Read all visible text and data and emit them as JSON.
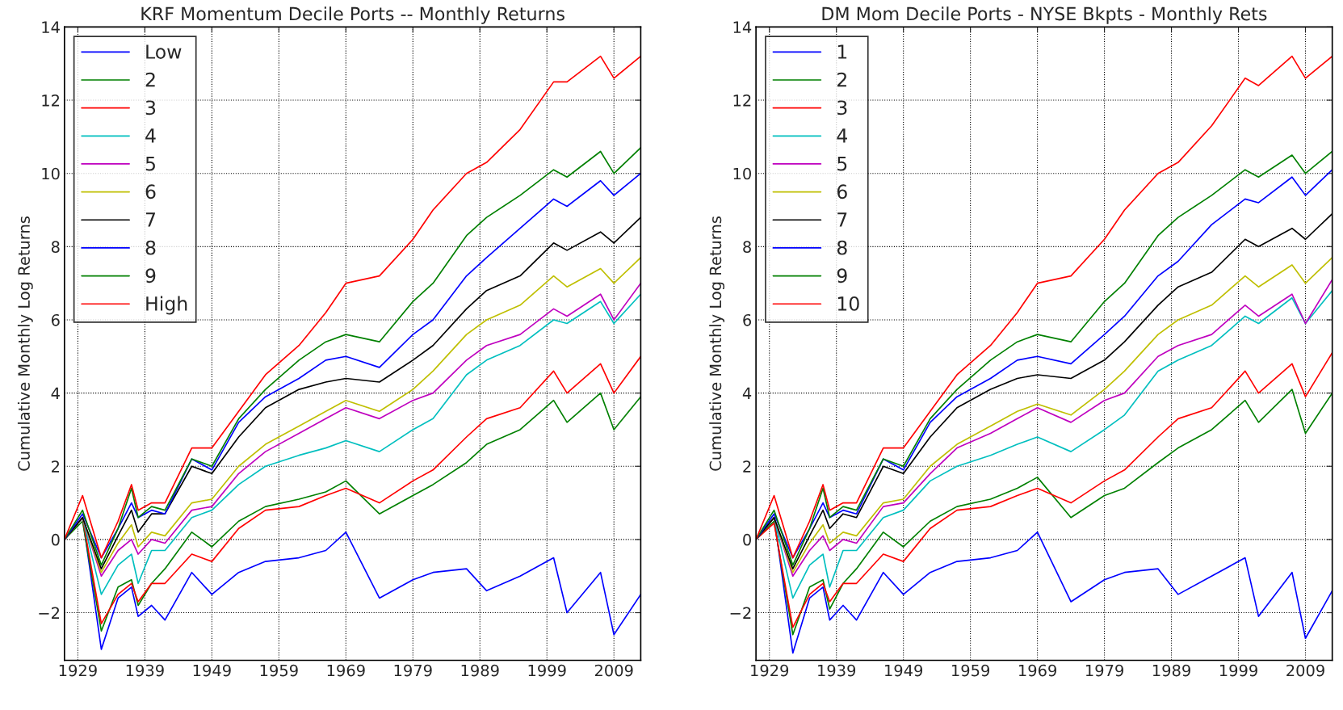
{
  "chart_data": [
    {
      "type": "line",
      "title": "KRF Momentum Decile Ports -- Monthly Returns",
      "ylabel": "Cumulative Monthly Log Returns",
      "x": [
        1927,
        1929.7,
        1932.5,
        1935,
        1937,
        1938,
        1940,
        1942,
        1946,
        1949,
        1953,
        1957,
        1962,
        1966,
        1969,
        1974,
        1979,
        1982,
        1987,
        1990,
        1995,
        2000,
        2002,
        2007,
        2009,
        2013
      ],
      "xlim": [
        1927,
        2013
      ],
      "xticks": [
        1929,
        1939,
        1949,
        1959,
        1969,
        1979,
        1989,
        1999,
        2009
      ],
      "ylim": [
        -3.3,
        14
      ],
      "yticks": [
        {
          "value": -2,
          "label": "−2"
        },
        0,
        2,
        4,
        6,
        8,
        10,
        12,
        14
      ],
      "grid": true,
      "legend": "top left",
      "marker": "none",
      "line_style": "solid",
      "series": [
        {
          "name": "Low",
          "color": "#0000ff",
          "values": [
            0,
            0.6,
            -3.0,
            -1.6,
            -1.3,
            -2.1,
            -1.8,
            -2.2,
            -0.9,
            -1.5,
            -0.9,
            -0.6,
            -0.5,
            -0.3,
            0.2,
            -1.6,
            -1.1,
            -0.9,
            -0.8,
            -1.4,
            -1.0,
            -0.5,
            -2.0,
            -0.9,
            -2.6,
            -1.5
          ]
        },
        {
          "name": "2",
          "color": "#008000",
          "values": [
            0,
            0.5,
            -2.5,
            -1.3,
            -1.1,
            -1.8,
            -1.2,
            -0.8,
            0.2,
            -0.2,
            0.5,
            0.9,
            1.1,
            1.3,
            1.6,
            0.7,
            1.2,
            1.5,
            2.1,
            2.6,
            3.0,
            3.8,
            3.2,
            4.0,
            3.0,
            3.9
          ]
        },
        {
          "name": "3",
          "color": "#ff0000",
          "values": [
            0,
            0.6,
            -2.3,
            -1.5,
            -1.2,
            -1.7,
            -1.2,
            -1.2,
            -0.4,
            -0.6,
            0.3,
            0.8,
            0.9,
            1.2,
            1.4,
            1.0,
            1.6,
            1.9,
            2.8,
            3.3,
            3.6,
            4.6,
            4.0,
            4.8,
            4.0,
            5.0
          ]
        },
        {
          "name": "4",
          "color": "#00bfbf",
          "values": [
            0,
            0.6,
            -1.5,
            -0.7,
            -0.4,
            -1.2,
            -0.3,
            -0.3,
            0.6,
            0.8,
            1.5,
            2.0,
            2.3,
            2.5,
            2.7,
            2.4,
            3.0,
            3.3,
            4.5,
            4.9,
            5.3,
            6.0,
            5.9,
            6.5,
            5.9,
            6.7
          ]
        },
        {
          "name": "5",
          "color": "#bf00bf",
          "values": [
            0,
            0.6,
            -1.0,
            -0.3,
            0.0,
            -0.4,
            0.0,
            -0.1,
            0.8,
            0.9,
            1.8,
            2.4,
            2.9,
            3.3,
            3.6,
            3.3,
            3.8,
            4.0,
            4.9,
            5.3,
            5.6,
            6.3,
            6.1,
            6.7,
            6.0,
            7.0
          ]
        },
        {
          "name": "6",
          "color": "#bfbf00",
          "values": [
            0,
            0.6,
            -0.9,
            -0.1,
            0.4,
            -0.2,
            0.2,
            0.1,
            1.0,
            1.1,
            2.0,
            2.6,
            3.1,
            3.5,
            3.8,
            3.5,
            4.1,
            4.6,
            5.6,
            6.0,
            6.4,
            7.2,
            6.9,
            7.4,
            7.0,
            7.7
          ]
        },
        {
          "name": "7",
          "color": "#000000",
          "values": [
            0,
            0.6,
            -0.8,
            0.1,
            0.8,
            0.2,
            0.7,
            0.7,
            2.0,
            1.8,
            2.8,
            3.6,
            4.1,
            4.3,
            4.4,
            4.3,
            4.9,
            5.3,
            6.3,
            6.8,
            7.2,
            8.1,
            7.9,
            8.4,
            8.1,
            8.8
          ]
        },
        {
          "name": "8",
          "color": "#0000ff",
          "values": [
            0,
            0.7,
            -0.5,
            0.3,
            1.0,
            0.6,
            0.8,
            0.7,
            2.2,
            1.9,
            3.2,
            3.9,
            4.4,
            4.9,
            5.0,
            4.7,
            5.6,
            6.0,
            7.2,
            7.7,
            8.5,
            9.3,
            9.1,
            9.8,
            9.4,
            10.0
          ]
        },
        {
          "name": "9",
          "color": "#008000",
          "values": [
            0,
            0.8,
            -0.7,
            0.3,
            1.4,
            0.6,
            0.9,
            0.8,
            2.2,
            2.0,
            3.3,
            4.1,
            4.9,
            5.4,
            5.6,
            5.4,
            6.5,
            7.0,
            8.3,
            8.8,
            9.4,
            10.1,
            9.9,
            10.6,
            10.0,
            10.7
          ]
        },
        {
          "name": "High",
          "color": "#ff0000",
          "values": [
            0,
            1.2,
            -0.5,
            0.5,
            1.5,
            0.8,
            1.0,
            1.0,
            2.5,
            2.5,
            3.5,
            4.5,
            5.3,
            6.2,
            7.0,
            7.2,
            8.2,
            9.0,
            10.0,
            10.3,
            11.2,
            12.5,
            12.5,
            13.2,
            12.6,
            13.2
          ]
        }
      ]
    },
    {
      "type": "line",
      "title": "DM Mom Decile Ports - NYSE Bkpts - Monthly Rets",
      "ylabel": "Cumulative Monthly Log Returns",
      "x": [
        1927,
        1929.7,
        1932.5,
        1935,
        1937,
        1938,
        1940,
        1942,
        1946,
        1949,
        1953,
        1957,
        1962,
        1966,
        1969,
        1974,
        1979,
        1982,
        1987,
        1990,
        1995,
        2000,
        2002,
        2007,
        2009,
        2013
      ],
      "xlim": [
        1927,
        2013
      ],
      "xticks": [
        1929,
        1939,
        1949,
        1959,
        1969,
        1979,
        1989,
        1999,
        2009
      ],
      "ylim": [
        -3.3,
        14
      ],
      "yticks": [
        {
          "value": -2,
          "label": "−2"
        },
        0,
        2,
        4,
        6,
        8,
        10,
        12,
        14
      ],
      "grid": true,
      "legend": "top left",
      "marker": "none",
      "line_style": "solid",
      "series": [
        {
          "name": "1",
          "color": "#0000ff",
          "values": [
            0,
            0.6,
            -3.1,
            -1.6,
            -1.3,
            -2.2,
            -1.8,
            -2.2,
            -0.9,
            -1.5,
            -0.9,
            -0.6,
            -0.5,
            -0.3,
            0.2,
            -1.7,
            -1.1,
            -0.9,
            -0.8,
            -1.5,
            -1.0,
            -0.5,
            -2.1,
            -0.9,
            -2.7,
            -1.4
          ]
        },
        {
          "name": "2",
          "color": "#008000",
          "values": [
            0,
            0.5,
            -2.6,
            -1.3,
            -1.1,
            -1.9,
            -1.2,
            -0.8,
            0.2,
            -0.2,
            0.5,
            0.9,
            1.1,
            1.4,
            1.7,
            0.6,
            1.2,
            1.4,
            2.1,
            2.5,
            3.0,
            3.8,
            3.2,
            4.1,
            2.9,
            4.0
          ]
        },
        {
          "name": "3",
          "color": "#ff0000",
          "values": [
            0,
            0.45,
            -2.4,
            -1.5,
            -1.2,
            -1.7,
            -1.2,
            -1.2,
            -0.4,
            -0.6,
            0.3,
            0.8,
            0.9,
            1.2,
            1.4,
            1.0,
            1.6,
            1.9,
            2.8,
            3.3,
            3.6,
            4.6,
            4.0,
            4.8,
            3.9,
            5.1
          ]
        },
        {
          "name": "4",
          "color": "#00bfbf",
          "values": [
            0,
            0.6,
            -1.6,
            -0.7,
            -0.4,
            -1.3,
            -0.3,
            -0.3,
            0.6,
            0.8,
            1.6,
            2.0,
            2.3,
            2.6,
            2.8,
            2.4,
            3.0,
            3.4,
            4.6,
            4.9,
            5.3,
            6.1,
            5.9,
            6.6,
            5.9,
            6.8
          ]
        },
        {
          "name": "5",
          "color": "#bf00bf",
          "values": [
            0,
            0.6,
            -1.0,
            -0.3,
            0.1,
            -0.3,
            0.0,
            -0.1,
            0.9,
            1.0,
            1.8,
            2.5,
            2.9,
            3.3,
            3.6,
            3.2,
            3.8,
            4.0,
            5.0,
            5.3,
            5.6,
            6.4,
            6.1,
            6.7,
            5.9,
            7.1
          ]
        },
        {
          "name": "6",
          "color": "#bfbf00",
          "values": [
            0,
            0.6,
            -0.9,
            -0.1,
            0.4,
            -0.1,
            0.2,
            0.1,
            1.0,
            1.1,
            2.0,
            2.6,
            3.1,
            3.5,
            3.7,
            3.4,
            4.1,
            4.6,
            5.6,
            6.0,
            6.4,
            7.2,
            6.9,
            7.5,
            7.0,
            7.7
          ]
        },
        {
          "name": "7",
          "color": "#000000",
          "values": [
            0,
            0.6,
            -0.8,
            0.1,
            0.8,
            0.3,
            0.7,
            0.6,
            2.0,
            1.8,
            2.8,
            3.6,
            4.1,
            4.4,
            4.5,
            4.4,
            4.9,
            5.4,
            6.4,
            6.9,
            7.3,
            8.2,
            8.0,
            8.5,
            8.2,
            8.9
          ]
        },
        {
          "name": "8",
          "color": "#0000ff",
          "values": [
            0,
            0.7,
            -0.5,
            0.3,
            1.0,
            0.6,
            0.8,
            0.7,
            2.2,
            1.9,
            3.2,
            3.9,
            4.4,
            4.9,
            5.0,
            4.8,
            5.6,
            6.1,
            7.2,
            7.6,
            8.6,
            9.3,
            9.2,
            9.9,
            9.4,
            10.1
          ]
        },
        {
          "name": "9",
          "color": "#008000",
          "values": [
            0,
            0.8,
            -0.7,
            0.3,
            1.4,
            0.6,
            0.9,
            0.8,
            2.2,
            2.0,
            3.3,
            4.1,
            4.9,
            5.4,
            5.6,
            5.4,
            6.5,
            7.0,
            8.3,
            8.8,
            9.4,
            10.1,
            9.9,
            10.5,
            10.0,
            10.6
          ]
        },
        {
          "name": "10",
          "color": "#ff0000",
          "values": [
            0,
            1.2,
            -0.5,
            0.5,
            1.5,
            0.8,
            1.0,
            1.0,
            2.5,
            2.5,
            3.5,
            4.5,
            5.3,
            6.2,
            7.0,
            7.2,
            8.2,
            9.0,
            10.0,
            10.3,
            11.3,
            12.6,
            12.4,
            13.2,
            12.6,
            13.2
          ]
        }
      ]
    }
  ]
}
